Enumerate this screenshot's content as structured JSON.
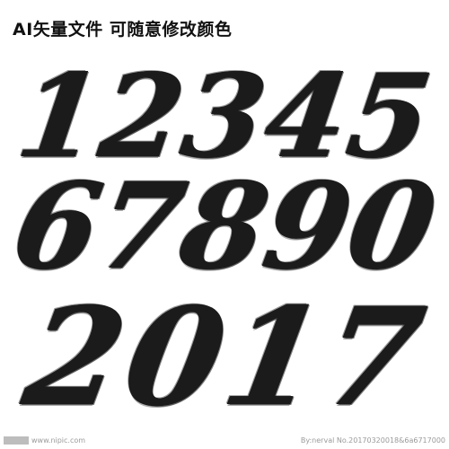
{
  "headline": "AI矢量文件 可随意修改颜色",
  "digits": {
    "row1": [
      "1",
      "2",
      "3",
      "4",
      "5"
    ],
    "row2": [
      "6",
      "7",
      "8",
      "9",
      "0"
    ],
    "row3": [
      "2",
      "0",
      "1",
      "7"
    ]
  },
  "colors": {
    "ink": "#1b1b1b",
    "background": "#ffffff"
  },
  "watermark": {
    "left_text": "www.nipic.com",
    "right_text": "By:nerval No.20170320018&6a6717000"
  }
}
